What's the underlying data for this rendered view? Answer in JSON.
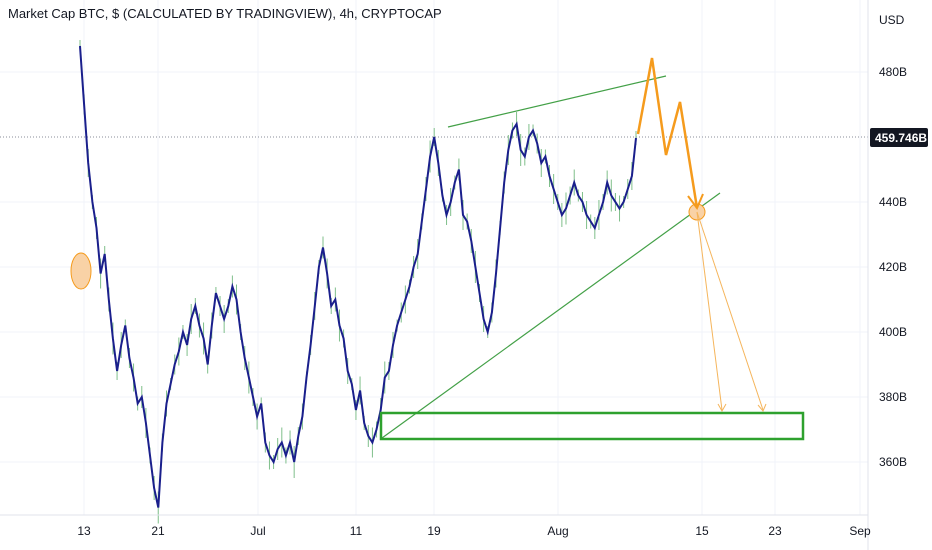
{
  "title": "Market Cap BTC, $ (CALCULATED BY TRADINGVIEW), 4h, CRYPTOCAP",
  "chart_data": {
    "type": "line",
    "symbol": "Market Cap BTC",
    "currency": "$",
    "interval": "4h",
    "exchange": "CRYPTOCAP",
    "y_unit_label": "USD",
    "ylim": [
      348,
      500
    ],
    "x_tick_labels": [
      "13",
      "21",
      "Jul",
      "11",
      "19",
      "Aug",
      "15",
      "23",
      "Sep"
    ],
    "y_tick_labels": [
      "480B",
      "440B",
      "420B",
      "400B",
      "380B",
      "360B"
    ],
    "y_tick_values": [
      480,
      440,
      420,
      400,
      380,
      360
    ],
    "last_price_label": "459.746B",
    "last_price": 459.746,
    "series": [
      {
        "values": [
          488,
          470,
          452,
          440,
          432,
          418,
          424,
          410,
          398,
          388,
          396,
          402,
          392,
          386,
          378,
          380,
          372,
          362,
          352,
          346,
          366,
          378,
          384,
          390,
          394,
          400,
          396,
          404,
          408,
          402,
          398,
          390,
          402,
          412,
          408,
          404,
          408,
          414,
          410,
          400,
          392,
          386,
          380,
          374,
          378,
          366,
          362,
          360,
          364,
          366,
          362,
          366,
          360,
          368,
          374,
          386,
          396,
          408,
          420,
          426,
          418,
          408,
          410,
          402,
          398,
          388,
          384,
          376,
          382,
          372,
          368,
          366,
          370,
          376,
          386,
          388,
          396,
          402,
          406,
          410,
          414,
          420,
          424,
          434,
          444,
          454,
          460,
          452,
          442,
          436,
          440,
          446,
          450,
          436,
          434,
          428,
          420,
          412,
          404,
          400,
          406,
          418,
          432,
          446,
          456,
          462,
          464,
          456,
          454,
          460,
          462,
          458,
          452,
          454,
          448,
          444,
          440,
          436,
          438,
          442,
          446,
          442,
          440,
          436,
          434,
          432,
          436,
          440,
          446,
          442,
          440,
          438,
          440,
          444,
          448,
          459.7
        ]
      }
    ],
    "colors": {
      "price_line": "#1a1f8c",
      "wick": "#7fbf8a",
      "trendline": "#43a047",
      "projection": "#f59b1d",
      "target_zone": "#2ea12e",
      "highlight_fill": "#f9d2a6",
      "last_price_tag": "#131722",
      "grid": "#f0f3fa"
    }
  }
}
